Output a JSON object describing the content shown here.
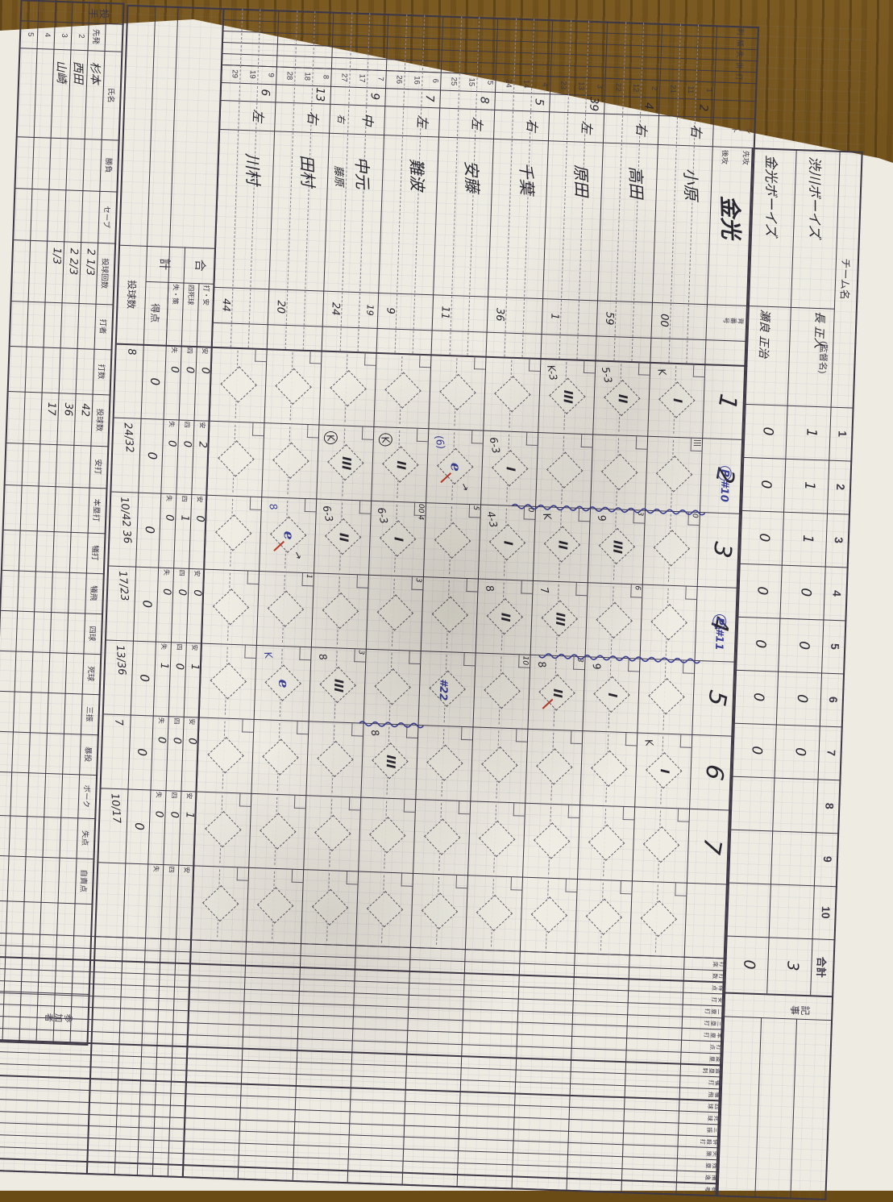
{
  "photo": {
    "wood_color": "#6a4b16",
    "paper_color": "#eeebe3",
    "print_ink": "#3e3847",
    "hand_ink": "#2a2731",
    "blue_ink": "#3c3f98",
    "red_ink": "#bf3a2b"
  },
  "score_header": {
    "team_label": "チーム名",
    "manager_label": "(監督名)",
    "innings": [
      "1",
      "2",
      "3",
      "4",
      "5",
      "6",
      "7",
      "8",
      "9",
      "10"
    ],
    "total_label": "合計",
    "notes_label": "記事",
    "teams": [
      {
        "name": "渋川ボーイズ",
        "manager": "長 正人",
        "scores": [
          "1",
          "1",
          "1",
          "0",
          "0",
          "0",
          "0",
          "",
          "",
          ""
        ],
        "total": "3"
      },
      {
        "name": "金光ボーイズ",
        "manager": "瀬良 正治",
        "scores": [
          "0",
          "0",
          "0",
          "0",
          "0",
          "0",
          "0",
          "",
          "",
          ""
        ],
        "total": "0"
      }
    ]
  },
  "grid": {
    "stat_col_headers": [
      "刺",
      "補",
      "失",
      "併",
      "打"
    ],
    "seat_header": "シート",
    "jersey_header": "背番号",
    "first_attack_label": "先攻",
    "second_attack_label": "後攻",
    "team_name_big": "金光",
    "inning_numbers": [
      "1",
      "2",
      "3",
      "4",
      "5",
      "6",
      "7",
      ""
    ],
    "slots": [
      {
        "rows": [
          "1",
          "11",
          "21"
        ],
        "no": "2",
        "pos": "右",
        "name": "小原",
        "jersey": "00",
        "sub": null
      },
      {
        "rows": [
          "2",
          "12",
          "22"
        ],
        "no": "4",
        "pos": "右",
        "name": "高田",
        "jersey": "59",
        "sub": null
      },
      {
        "rows": [
          "3",
          "13",
          "23"
        ],
        "no": "39",
        "pos": "左",
        "name": "原田",
        "jersey": "1",
        "sub": null
      },
      {
        "rows": [
          "4",
          "14",
          "24"
        ],
        "no": "5",
        "pos": "右",
        "name": "千葉",
        "jersey": "36",
        "sub": null
      },
      {
        "rows": [
          "5",
          "15",
          "25"
        ],
        "no": "8",
        "pos": "左",
        "name": "安藤",
        "jersey": "11",
        "sub": null
      },
      {
        "rows": [
          "6",
          "16",
          "26"
        ],
        "no": "7",
        "pos": "左",
        "name": "難波",
        "jersey": "9",
        "sub": null
      },
      {
        "rows": [
          "7",
          "17",
          "27"
        ],
        "no": "9",
        "pos": "中",
        "name": "中元",
        "jersey": "24",
        "sub": {
          "pos": "右",
          "name": "藤原",
          "jersey": "19"
        }
      },
      {
        "rows": [
          "8",
          "18",
          "28"
        ],
        "no": "13",
        "pos": "右",
        "name": "田村",
        "jersey": "20",
        "sub": null
      },
      {
        "rows": [
          "9",
          "19",
          "29"
        ],
        "no": "6",
        "pos": "左",
        "name": "川村",
        "jersey": "44",
        "sub": null
      }
    ],
    "plays": [
      {
        "slot": 1,
        "inning": 1,
        "out": "I",
        "code": "K"
      },
      {
        "slot": 2,
        "inning": 1,
        "out": "II",
        "code": "5-3"
      },
      {
        "slot": 3,
        "inning": 1,
        "out": "III",
        "code": "K-3"
      },
      {
        "slot": 4,
        "inning": 2,
        "out": "I",
        "code": "6-3"
      },
      {
        "slot": 5,
        "inning": 2,
        "out": "e",
        "code": "(6)",
        "ink": "blue",
        "red_mark": true,
        "arrow": true
      },
      {
        "slot": 6,
        "inning": 2,
        "out": "II",
        "code": "K",
        "circled": true
      },
      {
        "slot": 7,
        "inning": 2,
        "out": "III",
        "code": "K",
        "circled": true
      },
      {
        "slot": 2,
        "inning": 3,
        "out": "III",
        "code": "9"
      },
      {
        "slot": 3,
        "inning": 3,
        "out": "II",
        "code": "K"
      },
      {
        "slot": 4,
        "inning": 3,
        "out": "I",
        "code": "4-3"
      },
      {
        "slot": 6,
        "inning": 3,
        "out": "I",
        "code": "6-3"
      },
      {
        "slot": 7,
        "inning": 3,
        "out": "II",
        "code": "6-3"
      },
      {
        "slot": 8,
        "inning": 3,
        "out": "e",
        "code": "8",
        "ink": "blue",
        "red_mark": true,
        "arrow": true
      },
      {
        "slot": 3,
        "inning": 4,
        "out": "III",
        "code": "7"
      },
      {
        "slot": 4,
        "inning": 4,
        "out": "II",
        "code": "8"
      },
      {
        "slot": 2,
        "inning": 5,
        "out": "I",
        "code": "9"
      },
      {
        "slot": 3,
        "inning": 5,
        "out": "II",
        "code": "8",
        "red_mark": true
      },
      {
        "slot": 7,
        "inning": 5,
        "out": "III",
        "code": "8"
      },
      {
        "slot": 8,
        "inning": 5,
        "out": "e",
        "code": "K",
        "ink": "blue"
      },
      {
        "slot": 1,
        "inning": 6,
        "out": "I",
        "code": "K"
      },
      {
        "slot": 6,
        "inning": 6,
        "out": "III",
        "code": "8"
      }
    ],
    "tallies": [
      {
        "slot": 1,
        "inning": 2,
        "text": "|||"
      },
      {
        "slot": 1,
        "inning": 3,
        "text": "0"
      },
      {
        "slot": 2,
        "inning": 3,
        "text": "3"
      },
      {
        "slot": 2,
        "inning": 4,
        "text": "6"
      },
      {
        "slot": 4,
        "inning": 3,
        "text": "0"
      },
      {
        "slot": 4,
        "inning": 5,
        "text": "10"
      },
      {
        "slot": 5,
        "inning": 3,
        "text": "5"
      },
      {
        "slot": 6,
        "inning": 3,
        "text": "00 4"
      },
      {
        "slot": 3,
        "inning": 5,
        "text": "3"
      },
      {
        "slot": 7,
        "inning": 5,
        "text": "3"
      },
      {
        "slot": 8,
        "inning": 4,
        "text": "1"
      },
      {
        "slot": 6,
        "inning": 4,
        "text": "3"
      }
    ],
    "pitcher_changes": [
      {
        "mark": "P",
        "number": "#10",
        "inning": 3,
        "from_slot": 1,
        "length": 240
      },
      {
        "mark": "P",
        "number": "#11",
        "inning": 5,
        "from_slot": 1,
        "length": 200
      },
      {
        "mark": "",
        "number": "#22",
        "inning": 6,
        "from_slot": 6,
        "length": 80
      }
    ]
  },
  "totals": {
    "go_label": "合",
    "kei_label": "計",
    "sub_labels": [
      "打・安",
      "四死球",
      "失・策"
    ],
    "hits_label": "安",
    "walks_label": "四",
    "errors_label": "失",
    "runs_label": "得点",
    "pitches_label": "投球数",
    "per_inning": [
      {
        "hits": "0",
        "walks": "0",
        "errors": "0",
        "runs": "0",
        "pitches": "8"
      },
      {
        "hits": "2",
        "walks": "0",
        "errors": "0",
        "runs": "0",
        "pitches": "24/32"
      },
      {
        "hits": "0",
        "walks": "1",
        "errors": "0",
        "runs": "0",
        "pitches": "10/42 36"
      },
      {
        "hits": "0",
        "walks": "0",
        "errors": "0",
        "runs": "0",
        "pitches": "17/23"
      },
      {
        "hits": "1",
        "walks": "0",
        "errors": "1",
        "runs": "0",
        "pitches": "13/36"
      },
      {
        "hits": "0",
        "walks": "0",
        "errors": "0",
        "runs": "0",
        "pitches": "7"
      },
      {
        "hits": "1",
        "walks": "0",
        "errors": "0",
        "runs": "0",
        "pitches": "10/17"
      },
      {
        "hits": "",
        "walks": "",
        "errors": "",
        "runs": "",
        "pitches": ""
      }
    ]
  },
  "pitchers": {
    "side_label": "投手",
    "starter_label": "先発",
    "headers": [
      "氏名",
      "勝負",
      "セーブ",
      "投球回数",
      "打者",
      "打数",
      "投球数",
      "安打",
      "本塁打",
      "犠打",
      "犠飛",
      "四球",
      "死球",
      "三振",
      "暴投",
      "ボーク",
      "失点",
      "自責点"
    ],
    "participants_label": "参加者",
    "rows": [
      {
        "slot": "先発",
        "name": "杉本",
        "innings": "2 1/3",
        "pitches": "42"
      },
      {
        "slot": "2",
        "name": "西田",
        "innings": "2 2/3",
        "pitches": "36"
      },
      {
        "slot": "3",
        "name": "山崎",
        "innings": "1/3",
        "pitches": "17"
      },
      {
        "slot": "4",
        "name": "",
        "innings": "",
        "pitches": ""
      },
      {
        "slot": "5",
        "name": "",
        "innings": "",
        "pitches": ""
      }
    ]
  },
  "right_panel": {
    "headers": [
      "打席",
      "打数",
      "得点",
      "安打",
      "二塁打",
      "三塁打",
      "本塁打",
      "打点",
      "盗塁",
      "盗塁刺",
      "犠打",
      "犠飛",
      "四球",
      "死球",
      "三振",
      "併殺打",
      "失策",
      "残塁",
      "捕逸",
      "参考"
    ]
  }
}
